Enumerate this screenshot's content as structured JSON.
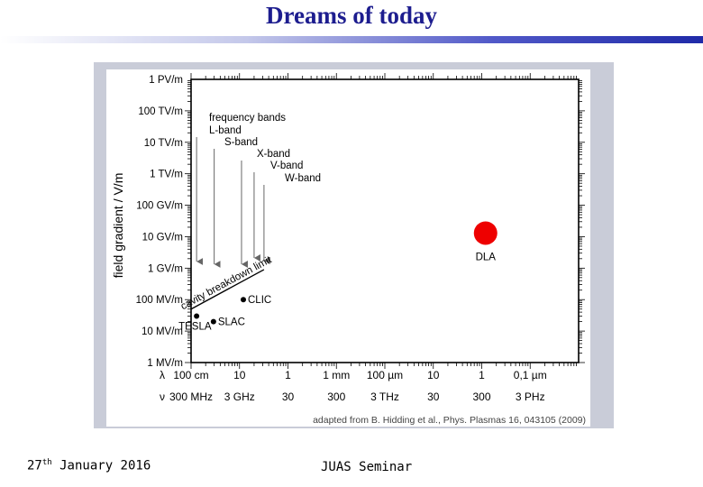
{
  "slide": {
    "title": "Dreams of today",
    "footer_date_day": "27",
    "footer_date_suffix": "th",
    "footer_date_rest": " January 2016",
    "footer_seminar": "JUAS Seminar"
  },
  "chart_data": {
    "type": "scatter",
    "ylabel": "field gradient / V/m",
    "yscale": "log",
    "ylim": [
      1000000,
      1000000000000000
    ],
    "y_ticks": [
      {
        "value": 1000000000000000,
        "label": "1 PV/m"
      },
      {
        "value": 100000000000000,
        "label": "100 TV/m"
      },
      {
        "value": 10000000000000,
        "label": "10 TV/m"
      },
      {
        "value": 1000000000000,
        "label": "1 TV/m"
      },
      {
        "value": 100000000000,
        "label": "100 GV/m"
      },
      {
        "value": 10000000000,
        "label": "10 GV/m"
      },
      {
        "value": 1000000000,
        "label": "1 GV/m"
      },
      {
        "value": 100000000,
        "label": "100 MV/m"
      },
      {
        "value": 10000000,
        "label": "10 MV/m"
      },
      {
        "value": 1000000,
        "label": "1 MV/m"
      }
    ],
    "xscale": "log",
    "xlim": [
      1,
      100000000
    ],
    "x_rows": [
      {
        "symbol": "λ",
        "labels": [
          "100 cm",
          "10",
          "1",
          "1 mm",
          "100 µm",
          "10",
          "1",
          "0,1 µm"
        ]
      },
      {
        "symbol": "ν",
        "labels": [
          "300 MHz",
          "3 GHz",
          "30",
          "300",
          "3 THz",
          "30",
          "300",
          "3 PHz"
        ]
      }
    ],
    "frequency_bands": {
      "title": "frequency bands",
      "bands": [
        {
          "name": "L-band",
          "x": 1.3
        },
        {
          "name": "S-band",
          "x": 3
        },
        {
          "name": "X-band",
          "x": 11
        },
        {
          "name": "V-band",
          "x": 20
        },
        {
          "name": "W-band",
          "x": 32
        }
      ]
    },
    "limit_line": {
      "label": "cavity breakdown limit",
      "points": [
        [
          1,
          50000000
        ],
        [
          32,
          900000000
        ]
      ]
    },
    "points": [
      {
        "label": "TESLA",
        "x": 1.3,
        "y": 30000000,
        "color": "#000000"
      },
      {
        "label": "SLAC",
        "x": 2.9,
        "y": 20000000,
        "color": "#000000"
      },
      {
        "label": "CLIC",
        "x": 12,
        "y": 100000000,
        "color": "#000000"
      },
      {
        "label": "DLA",
        "x": 1200000,
        "y": 13000000000,
        "color": "#ee0000"
      }
    ],
    "source_note": "adapted from B. Hidding et al., Phys. Plasmas 16, 043105 (2009)"
  }
}
